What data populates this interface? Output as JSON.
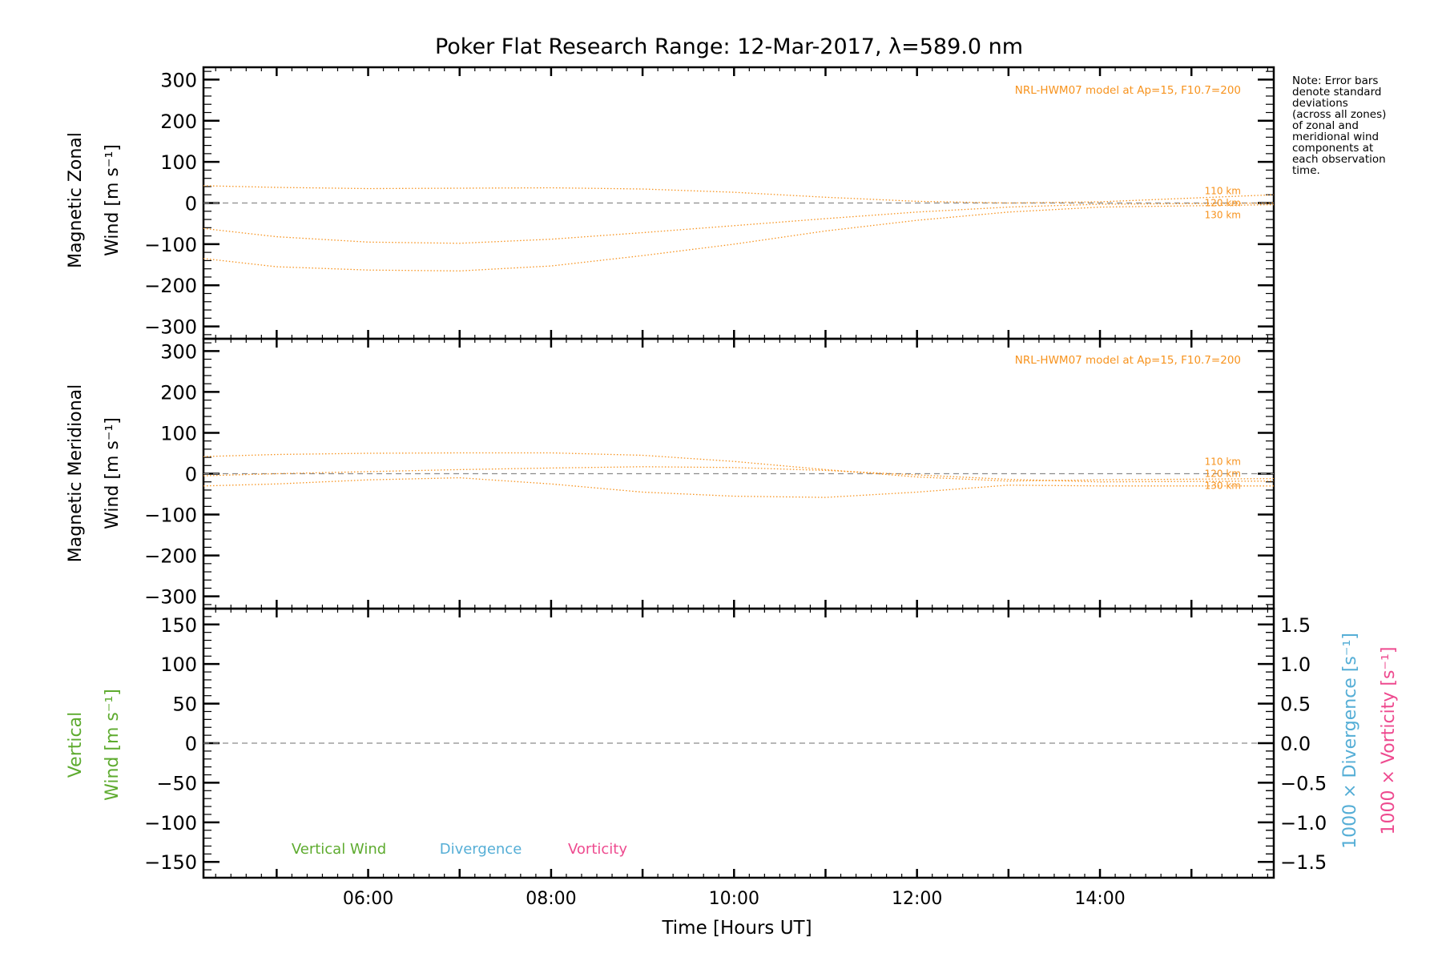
{
  "title": "Poker Flat Research Range: 12-Mar-2017, λ=589.0 nm",
  "note_lines": [
    "Note: Error bars",
    "denote standard",
    "deviations",
    "(across all zones)",
    "of zonal and",
    "meridional wind",
    "components at",
    "each observation",
    "time."
  ],
  "colors": {
    "model": "#f7931e",
    "vertical": "#5eab2f",
    "divergence": "#55aed6",
    "vorticity": "#ee4a8f",
    "axis": "#000000",
    "zero_line": "#8c8c8c"
  },
  "chart_data": [
    {
      "type": "line",
      "panel": "zonal",
      "ylabel_line1": "Magnetic Zonal",
      "ylabel_line2": "Wind [m s⁻¹]",
      "ylim": [
        -330,
        330
      ],
      "yticks": [
        300,
        200,
        100,
        0,
        -100,
        -200,
        -300
      ],
      "xlim": [
        4.2,
        15.9
      ],
      "model_label": "NRL-HWM07 model at Ap=15, F10.7=200",
      "x": [
        4.2,
        5.0,
        6.0,
        7.0,
        8.0,
        9.0,
        10.0,
        11.0,
        12.0,
        13.0,
        14.0,
        15.9
      ],
      "series": [
        {
          "name": "110 km",
          "values": [
            42,
            38,
            35,
            36,
            37,
            34,
            26,
            14,
            4,
            0,
            3,
            20
          ]
        },
        {
          "name": "120 km",
          "values": [
            -62,
            -82,
            -95,
            -98,
            -88,
            -72,
            -55,
            -38,
            -22,
            -10,
            -3,
            0
          ]
        },
        {
          "name": "130 km",
          "values": [
            -135,
            -155,
            -163,
            -165,
            -153,
            -128,
            -100,
            -68,
            -42,
            -22,
            -10,
            -4
          ]
        }
      ]
    },
    {
      "type": "line",
      "panel": "meridional",
      "ylabel_line1": "Magnetic Meridional",
      "ylabel_line2": "Wind [m s⁻¹]",
      "ylim": [
        -330,
        330
      ],
      "yticks": [
        300,
        200,
        100,
        0,
        -100,
        -200,
        -300
      ],
      "xlim": [
        4.2,
        15.9
      ],
      "model_label": "NRL-HWM07 model at Ap=15, F10.7=200",
      "x": [
        4.2,
        5.0,
        6.0,
        7.0,
        8.0,
        9.0,
        10.0,
        11.0,
        12.0,
        13.0,
        14.0,
        15.9
      ],
      "series": [
        {
          "name": "110 km",
          "values": [
            42,
            47,
            50,
            51,
            51,
            45,
            30,
            10,
            -8,
            -18,
            -15,
            -12
          ]
        },
        {
          "name": "120 km",
          "values": [
            -5,
            0,
            5,
            10,
            14,
            17,
            15,
            8,
            -3,
            -14,
            -20,
            -18
          ]
        },
        {
          "name": "130 km",
          "values": [
            -30,
            -25,
            -15,
            -10,
            -25,
            -45,
            -55,
            -58,
            -45,
            -28,
            -30,
            -30
          ]
        }
      ]
    },
    {
      "type": "line",
      "panel": "vertical",
      "ylabel_line1": "Vertical",
      "ylabel_line2": "Wind [m s⁻¹]",
      "ylim": [
        -170,
        170
      ],
      "yticks": [
        150,
        100,
        50,
        0,
        -50,
        -100,
        -150
      ],
      "right_ylim": [
        -1.7,
        1.7
      ],
      "right_yticks": [
        "1.5",
        "1.0",
        "0.5",
        "0.0",
        "−0.5",
        "−1.0",
        "−1.5"
      ],
      "right_label_divergence": "1000 × Divergence [s⁻¹]",
      "right_label_vorticity": "1000 × Vorticity [s⁻¹]",
      "xlim": [
        4.2,
        15.9
      ],
      "xticks": [
        "06:00",
        "08:00",
        "10:00",
        "12:00",
        "14:00"
      ],
      "xtick_values": [
        6,
        8,
        10,
        12,
        14
      ],
      "xlabel": "Time [Hours UT]",
      "legend": [
        "Vertical Wind",
        "Divergence",
        "Vorticity"
      ]
    }
  ]
}
